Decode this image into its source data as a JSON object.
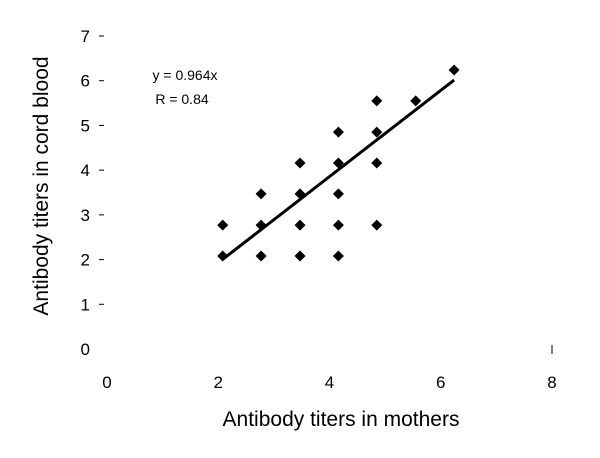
{
  "chart_data": {
    "type": "scatter",
    "title": "",
    "xlabel": "Antibody titers in mothers",
    "ylabel": "Antibody titers in cord blood",
    "xlim": [
      0,
      8
    ],
    "ylim": [
      0,
      7
    ],
    "x_ticks": [
      "0",
      "2",
      "4",
      "6",
      "8"
    ],
    "y_ticks": [
      "0",
      "1",
      "2",
      "3",
      "4",
      "5",
      "6",
      "7"
    ],
    "grid": false,
    "legend": "none",
    "series": [
      {
        "marker": "diamond",
        "color": "#000000",
        "points": [
          [
            2.08,
            2.08
          ],
          [
            2.08,
            2.77
          ],
          [
            2.77,
            2.08
          ],
          [
            2.77,
            2.77
          ],
          [
            2.77,
            3.47
          ],
          [
            3.47,
            2.08
          ],
          [
            3.47,
            2.77
          ],
          [
            3.47,
            3.47
          ],
          [
            3.47,
            4.16
          ],
          [
            4.16,
            2.08
          ],
          [
            4.16,
            2.77
          ],
          [
            4.16,
            3.47
          ],
          [
            4.16,
            4.16
          ],
          [
            4.16,
            4.85
          ],
          [
            4.85,
            2.77
          ],
          [
            4.85,
            4.16
          ],
          [
            4.85,
            4.85
          ],
          [
            4.85,
            5.55
          ],
          [
            5.55,
            5.55
          ],
          [
            6.24,
            6.24
          ]
        ]
      }
    ],
    "trendline": {
      "equation": "y = 0.964x",
      "r_label": "R = 0.84",
      "slope": 0.964,
      "x_range": [
        2.08,
        6.24
      ]
    }
  }
}
